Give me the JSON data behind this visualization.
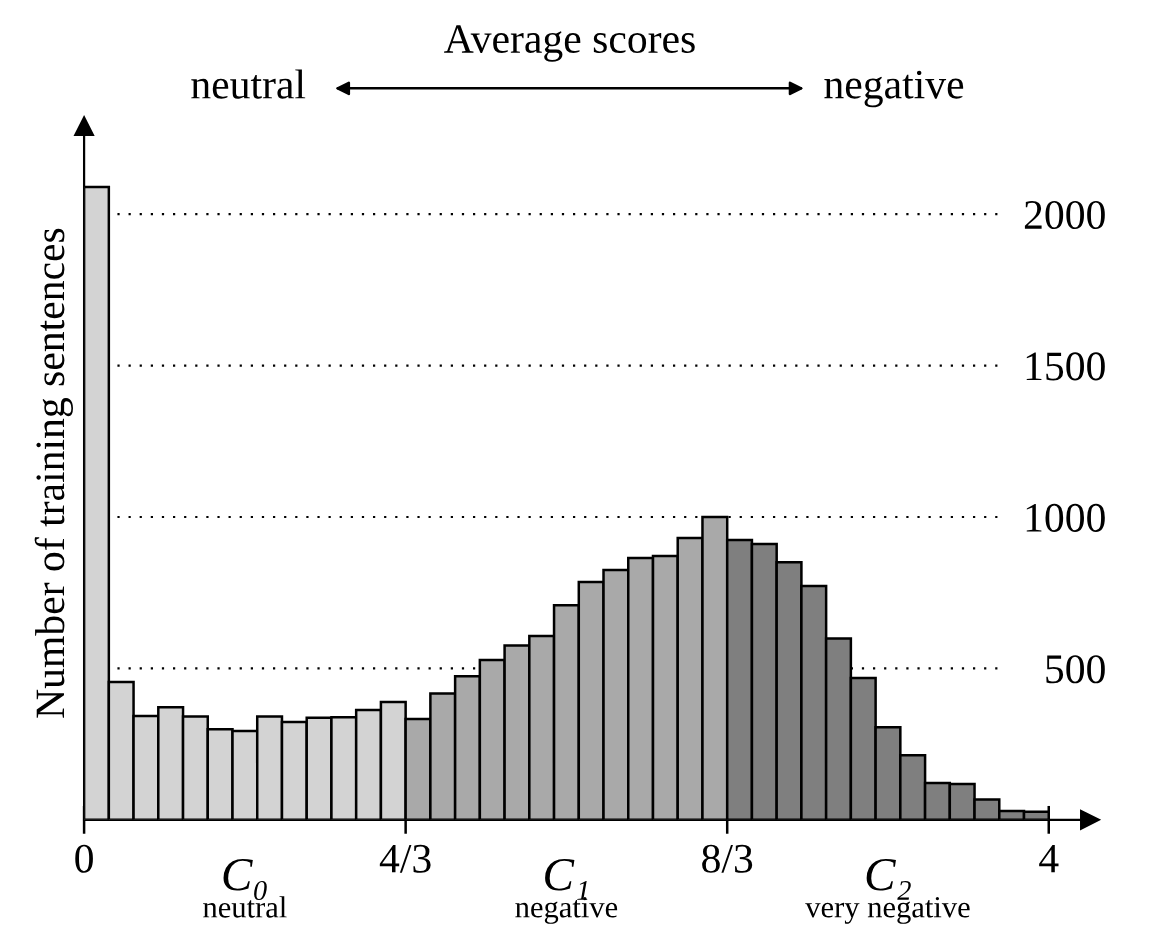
{
  "chart_data": {
    "type": "histogram",
    "title": "Average scores",
    "ylabel": "Number of training sentences",
    "bins": [
      0,
      0.1026,
      0.2051,
      0.3077,
      0.4103,
      0.5128,
      0.6154,
      0.7179,
      0.8205,
      0.9231,
      1.0256,
      1.1282,
      1.2308,
      1.3333,
      1.4359,
      1.5385,
      1.641,
      1.7436,
      1.8462,
      1.9487,
      2.0513,
      2.1538,
      2.2564,
      2.359,
      2.4615,
      2.5641,
      2.6667,
      2.7692,
      2.8718,
      2.9744,
      3.0769,
      3.1795,
      3.2821,
      3.3846,
      3.4872,
      3.5897,
      3.6923,
      3.7949,
      3.8974,
      4
    ],
    "values": [
      2090,
      455,
      343,
      372,
      341,
      299,
      293,
      341,
      323,
      337,
      339,
      363,
      389,
      333,
      417,
      474,
      528,
      576,
      607,
      709,
      785,
      825,
      865,
      871,
      931,
      1000,
      924,
      911,
      851,
      772,
      599,
      468,
      306,
      213,
      122,
      118,
      67,
      29,
      27
    ],
    "colors": [
      "#d3d3d3",
      "#d3d3d3",
      "#d3d3d3",
      "#d3d3d3",
      "#d3d3d3",
      "#d3d3d3",
      "#d3d3d3",
      "#d3d3d3",
      "#d3d3d3",
      "#d3d3d3",
      "#d3d3d3",
      "#d3d3d3",
      "#d3d3d3",
      "#a9a9a9",
      "#a9a9a9",
      "#a9a9a9",
      "#a9a9a9",
      "#a9a9a9",
      "#a9a9a9",
      "#a9a9a9",
      "#a9a9a9",
      "#a9a9a9",
      "#a9a9a9",
      "#a9a9a9",
      "#a9a9a9",
      "#a9a9a9",
      "#7f7f7f",
      "#7f7f7f",
      "#7f7f7f",
      "#7f7f7f",
      "#7f7f7f",
      "#7f7f7f",
      "#7f7f7f",
      "#7f7f7f",
      "#7f7f7f",
      "#7f7f7f",
      "#7f7f7f",
      "#7f7f7f",
      "#7f7f7f"
    ],
    "xlim": [
      0,
      4.17
    ],
    "ylim": [
      0,
      2290
    ],
    "xticks": [
      0,
      {
        "value": 1.3333,
        "label": "4/3"
      },
      {
        "value": 2.6667,
        "label": "8/3"
      },
      4
    ],
    "yticks": [
      500,
      1000,
      1500,
      2000
    ],
    "grid": "y",
    "annotations": [
      "C₀",
      "neutral",
      "C₁",
      "negative",
      "C₂",
      "very negative",
      "neutral",
      "negative"
    ]
  }
}
